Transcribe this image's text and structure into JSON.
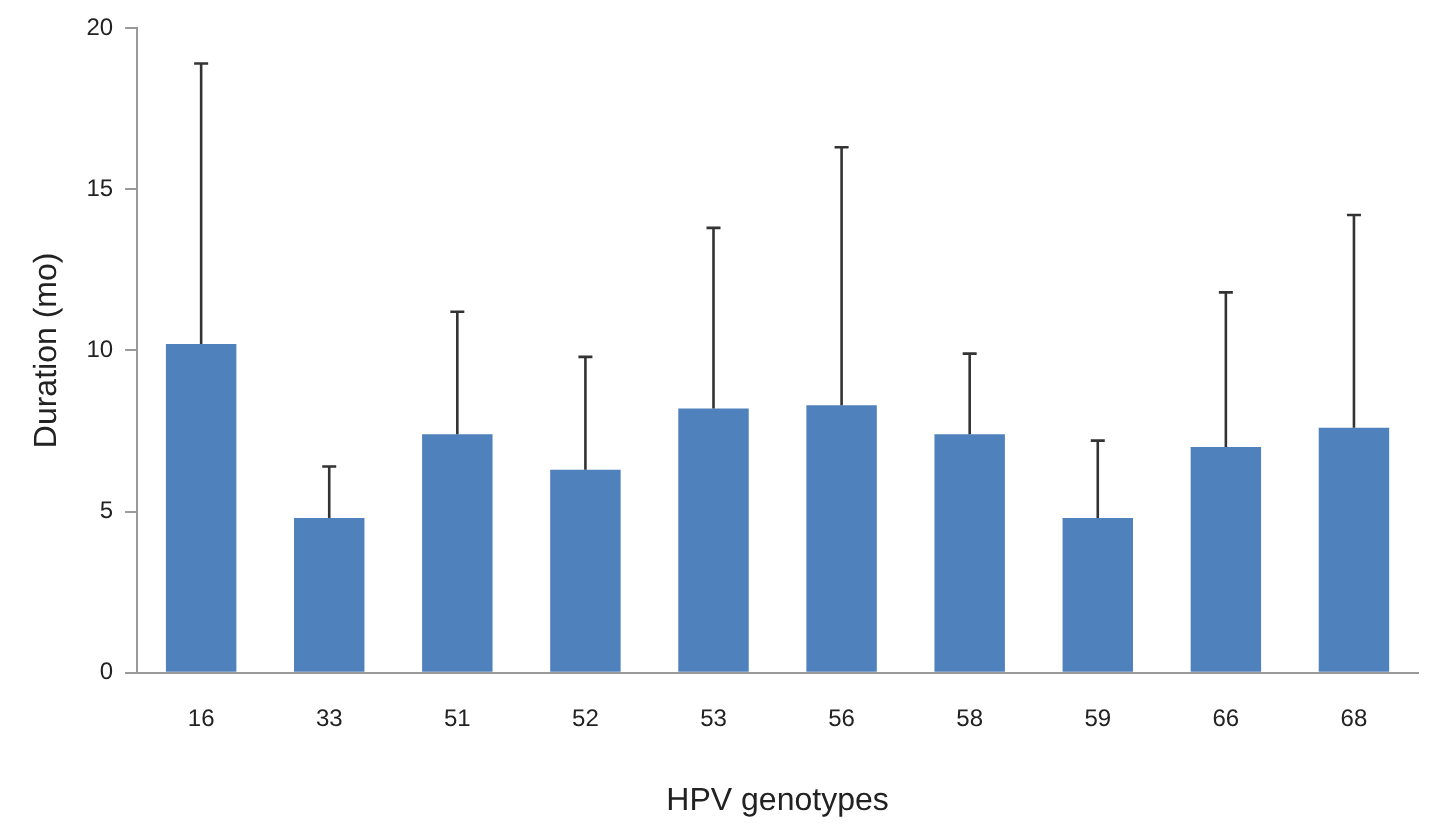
{
  "chart_data": {
    "type": "bar",
    "xlabel": "HPV genotypes",
    "ylabel": "Duration (mo)",
    "categories": [
      "16",
      "33",
      "51",
      "52",
      "53",
      "56",
      "58",
      "59",
      "66",
      "68"
    ],
    "values": [
      10.2,
      4.8,
      7.4,
      6.3,
      8.2,
      8.3,
      7.4,
      4.8,
      7.0,
      7.6
    ],
    "errors": [
      [
        10.2,
        18.9
      ],
      [
        4.8,
        6.4
      ],
      [
        7.4,
        11.2
      ],
      [
        6.3,
        9.8
      ],
      [
        8.2,
        13.8
      ],
      [
        8.3,
        16.3
      ],
      [
        7.4,
        9.9
      ],
      [
        4.8,
        7.2
      ],
      [
        7.0,
        11.8
      ],
      [
        7.6,
        14.2
      ]
    ],
    "color": "#4f81bd",
    "ylim": [
      0,
      20
    ],
    "yticks": [
      0,
      5,
      10,
      15,
      20
    ],
    "grid": false,
    "legend": false
  }
}
